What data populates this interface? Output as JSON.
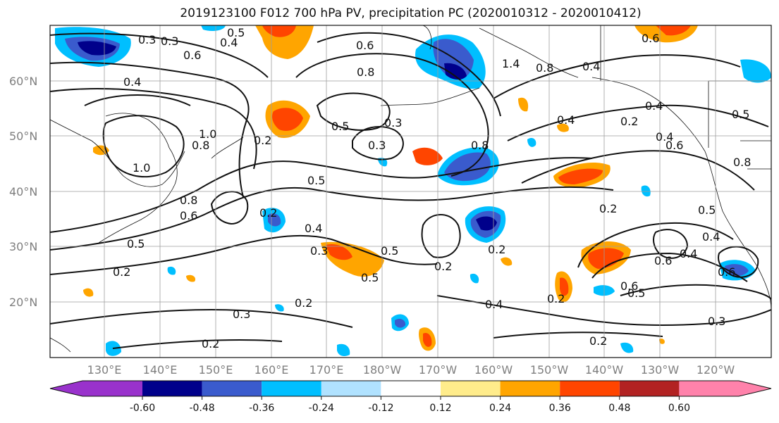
{
  "title": "2019123100 F012 700 hPa PV, precipitation PC (2020010312 - 2020010412)",
  "lat_labels": [
    "60°N",
    "50°N",
    "40°N",
    "30°N",
    "20°N"
  ],
  "lon_labels": [
    "130°E",
    "140°E",
    "150°E",
    "160°E",
    "170°E",
    "180°W",
    "170°W",
    "160°W",
    "150°W",
    "140°W",
    "130°W",
    "120°W"
  ],
  "colorbar": {
    "colors": [
      "#9932cc",
      "#00008b",
      "#3a5bcd",
      "#00bfff",
      "#b0e2ff",
      "#ffffff",
      "#ffec8b",
      "#ffa500",
      "#ff4500",
      "#b22222",
      "#ff82ab"
    ],
    "tick_labels": [
      "-0.60",
      "-0.48",
      "-0.36",
      "-0.24",
      "-0.12",
      "0.12",
      "0.24",
      "0.36",
      "0.48",
      "0.60"
    ]
  },
  "contour_labels": [
    "0.3",
    "0.5",
    "0.4",
    "0.6",
    "0.6",
    "0.8",
    "0.4",
    "1.4",
    "0.8",
    "0.4",
    "0.6",
    "0.3",
    "0.4",
    "0.4",
    "1.0",
    "0.8",
    "0.5",
    "0.3",
    "0.3",
    "0.8",
    "0.4",
    "1.0",
    "0.5",
    "0.2",
    "0.8",
    "0.6",
    "0.2",
    "0.4",
    "0.5",
    "0.3",
    "0.5",
    "0.2",
    "0.2",
    "0.5",
    "0.2",
    "0.6",
    "0.4",
    "0.2",
    "0.2",
    "0.3",
    "0.4",
    "0.2",
    "0.6",
    "0.5",
    "0.6",
    "0.5",
    "0.3",
    "0.2",
    "0.2",
    "0.5",
    "0.8",
    "0.6",
    "0.4",
    "0.2"
  ]
}
